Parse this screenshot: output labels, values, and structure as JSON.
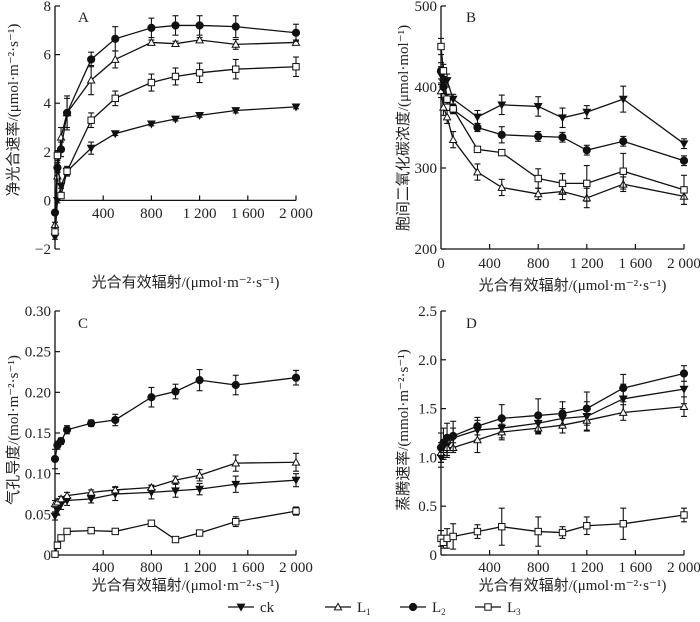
{
  "figure": {
    "legend": [
      {
        "key": "ck",
        "label": "ck",
        "sub": "",
        "marker": "triangle-down-filled"
      },
      {
        "key": "L1",
        "label": "L",
        "sub": "1",
        "marker": "triangle-up-open"
      },
      {
        "key": "L2",
        "label": "L",
        "sub": "2",
        "marker": "circle-filled"
      },
      {
        "key": "L3",
        "label": "L",
        "sub": "3",
        "marker": "square-open"
      }
    ],
    "legend_placement": "bottom-center"
  },
  "chart_data": [
    {
      "id": "A",
      "type": "line",
      "panel_label": "A",
      "xlabel": "光合有效辐射/(μmol·m⁻²·s⁻¹)",
      "ylabel": "净光合速率/(μmol·m⁻²·s⁻¹)",
      "xlim": [
        0,
        2000
      ],
      "ylim": [
        -2,
        8
      ],
      "xticks": [
        400,
        800,
        1200,
        1600,
        2000
      ],
      "xtick_labels": [
        "400",
        "800",
        "1 200",
        "1 600",
        "2 000"
      ],
      "yticks": [
        -2,
        0,
        2,
        4,
        6,
        8
      ],
      "ytick_labels": [
        "−2",
        "0",
        "2",
        "4",
        "6",
        "8"
      ],
      "x": [
        0,
        20,
        50,
        100,
        300,
        500,
        800,
        1000,
        1200,
        1500,
        2000
      ],
      "series": [
        {
          "name": "ck",
          "values": [
            -1.5,
            0.0,
            0.6,
            1.2,
            2.15,
            2.75,
            3.15,
            3.35,
            3.5,
            3.7,
            3.85
          ],
          "errors": [
            0.1,
            0.1,
            0.1,
            0.15,
            0.25,
            0.08,
            0.08,
            0.08,
            0.08,
            0.1,
            0.08
          ]
        },
        {
          "name": "L1",
          "values": [
            -1.0,
            1.0,
            2.6,
            3.6,
            4.95,
            5.8,
            6.5,
            6.45,
            6.6,
            6.42,
            6.5
          ],
          "errors": [
            0.1,
            0.2,
            0.4,
            0.6,
            0.6,
            0.35,
            0.1,
            0.1,
            0.1,
            0.2,
            0.1
          ]
        },
        {
          "name": "L2",
          "values": [
            -0.5,
            1.35,
            2.1,
            3.6,
            5.8,
            6.65,
            7.1,
            7.2,
            7.2,
            7.15,
            6.9
          ],
          "errors": [
            0.1,
            0.2,
            0.3,
            0.7,
            0.3,
            0.5,
            0.4,
            0.4,
            0.4,
            0.45,
            0.35
          ]
        },
        {
          "name": "L3",
          "values": [
            -1.3,
            1.85,
            0.2,
            1.2,
            3.3,
            4.2,
            4.85,
            5.1,
            5.25,
            5.4,
            5.5
          ],
          "errors": [
            0.1,
            0.2,
            0.1,
            0.2,
            0.3,
            0.3,
            0.35,
            0.35,
            0.4,
            0.4,
            0.4
          ]
        }
      ]
    },
    {
      "id": "B",
      "type": "line",
      "panel_label": "B",
      "xlabel": "光合有效辐射/(μmol·m⁻²·s⁻¹)",
      "ylabel": "胞间二氧化碳浓度/(μmol·mol⁻¹)",
      "xlim": [
        0,
        2000
      ],
      "ylim": [
        200,
        500
      ],
      "xticks": [
        0,
        400,
        800,
        1200,
        1600,
        2000
      ],
      "xtick_labels": [
        "0",
        "400",
        "800",
        "1 200",
        "1 600",
        "2 000"
      ],
      "yticks": [
        200,
        300,
        400,
        500
      ],
      "ytick_labels": [
        "200",
        "300",
        "400",
        "500"
      ],
      "x": [
        0,
        20,
        50,
        100,
        300,
        500,
        800,
        1000,
        1200,
        1500,
        2000
      ],
      "series": [
        {
          "name": "ck",
          "values": [
            415,
            405,
            408,
            385,
            363,
            378,
            376,
            362,
            369,
            385,
            330
          ],
          "errors": [
            10,
            8,
            8,
            6,
            8,
            12,
            12,
            12,
            8,
            16,
            6
          ]
        },
        {
          "name": "L1",
          "values": [
            395,
            375,
            363,
            335,
            295,
            276,
            268,
            271,
            263,
            280,
            265
          ],
          "errors": [
            8,
            10,
            8,
            10,
            10,
            10,
            7,
            10,
            12,
            9,
            10
          ]
        },
        {
          "name": "L2",
          "values": [
            420,
            400,
            385,
            372,
            350,
            341,
            339,
            338,
            322,
            333,
            309
          ],
          "errors": [
            10,
            8,
            6,
            5,
            5,
            10,
            6,
            6,
            6,
            6,
            6
          ]
        },
        {
          "name": "L3",
          "values": [
            450,
            420,
            385,
            373,
            323,
            319,
            287,
            281,
            281,
            296,
            273
          ],
          "errors": [
            10,
            8,
            6,
            5,
            3,
            3,
            12,
            12,
            22,
            22,
            18
          ]
        }
      ]
    },
    {
      "id": "C",
      "type": "line",
      "panel_label": "C",
      "xlabel": "光合有效辐射/(μmol·m⁻²·s⁻¹)",
      "ylabel": "气孔导度/(mol·m⁻²·s⁻¹)",
      "xlim": [
        0,
        2000
      ],
      "ylim": [
        0,
        0.3
      ],
      "xticks": [
        400,
        800,
        1200,
        1600,
        2000
      ],
      "xtick_labels": [
        "400",
        "800",
        "1 200",
        "1 600",
        "2 000"
      ],
      "yticks": [
        0,
        0.05,
        0.1,
        0.15,
        0.2,
        0.25,
        0.3
      ],
      "ytick_labels": [
        "0",
        "0.05",
        "0.10",
        "0.15",
        "0.20",
        "0.25",
        "0.30"
      ],
      "x": [
        0,
        20,
        50,
        100,
        300,
        500,
        800,
        1000,
        1200,
        1500,
        2000
      ],
      "series": [
        {
          "name": "ck",
          "values": [
            0.048,
            0.055,
            0.062,
            0.067,
            0.069,
            0.075,
            0.077,
            0.079,
            0.081,
            0.087,
            0.092
          ],
          "errors": [
            0.005,
            0.006,
            0.006,
            0.006,
            0.005,
            0.008,
            0.008,
            0.008,
            0.007,
            0.01,
            0.008
          ]
        },
        {
          "name": "L1",
          "values": [
            0.063,
            0.065,
            0.069,
            0.073,
            0.077,
            0.08,
            0.083,
            0.092,
            0.098,
            0.113,
            0.114
          ],
          "errors": [
            0.004,
            0.004,
            0.003,
            0.004,
            0.003,
            0.004,
            0.003,
            0.005,
            0.007,
            0.01,
            0.011
          ]
        },
        {
          "name": "L2",
          "values": [
            0.118,
            0.135,
            0.14,
            0.154,
            0.162,
            0.166,
            0.194,
            0.201,
            0.215,
            0.209,
            0.218
          ],
          "errors": [
            0.012,
            0.005,
            0.004,
            0.005,
            0.004,
            0.007,
            0.012,
            0.009,
            0.013,
            0.012,
            0.009
          ]
        },
        {
          "name": "L3",
          "values": [
            0.001,
            0.012,
            0.021,
            0.029,
            0.03,
            0.029,
            0.039,
            0.019,
            0.027,
            0.041,
            0.054
          ],
          "errors": [
            0.001,
            0.002,
            0.002,
            0.003,
            0.003,
            0.002,
            0.002,
            0.003,
            0.002,
            0.006,
            0.005
          ]
        }
      ]
    },
    {
      "id": "D",
      "type": "line",
      "panel_label": "D",
      "xlabel": "光合有效辐射/(μmol·m⁻²·s⁻¹)",
      "ylabel": "蒸腾速率/(mmol·m⁻²·s⁻¹)",
      "xlim": [
        0,
        2000
      ],
      "ylim": [
        0,
        2.5
      ],
      "xticks": [
        400,
        800,
        1200,
        1600,
        2000
      ],
      "xtick_labels": [
        "400",
        "800",
        "1 200",
        "1 600",
        "2 000"
      ],
      "yticks": [
        0,
        0.5,
        1.0,
        1.5,
        2.0,
        2.5
      ],
      "ytick_labels": [
        "0",
        "0.5",
        "1.0",
        "1.5",
        "2.0",
        "2.5"
      ],
      "x": [
        0,
        20,
        50,
        100,
        300,
        500,
        800,
        1000,
        1200,
        1500,
        2000
      ],
      "series": [
        {
          "name": "ck",
          "values": [
            1.0,
            1.08,
            1.12,
            1.2,
            1.28,
            1.3,
            1.35,
            1.4,
            1.42,
            1.6,
            1.7
          ],
          "errors": [
            0.1,
            0.1,
            0.1,
            0.1,
            0.1,
            0.1,
            0.1,
            0.1,
            0.15,
            0.15,
            0.15
          ]
        },
        {
          "name": "L1",
          "values": [
            1.05,
            1.08,
            1.1,
            1.1,
            1.18,
            1.26,
            1.3,
            1.33,
            1.38,
            1.46,
            1.52
          ],
          "errors": [
            0.1,
            0.1,
            0.1,
            0.05,
            0.13,
            0.08,
            0.06,
            0.08,
            0.1,
            0.08,
            0.1
          ]
        },
        {
          "name": "L2",
          "values": [
            1.1,
            1.15,
            1.2,
            1.22,
            1.32,
            1.4,
            1.43,
            1.45,
            1.5,
            1.71,
            1.86
          ],
          "errors": [
            0.15,
            0.15,
            0.15,
            0.15,
            0.09,
            0.14,
            0.17,
            0.12,
            0.17,
            0.14,
            0.08
          ]
        },
        {
          "name": "L3",
          "values": [
            0.17,
            0.13,
            0.17,
            0.19,
            0.24,
            0.29,
            0.24,
            0.23,
            0.3,
            0.32,
            0.41
          ],
          "errors": [
            0.08,
            0.06,
            0.1,
            0.13,
            0.07,
            0.19,
            0.15,
            0.06,
            0.09,
            0.16,
            0.07
          ]
        }
      ]
    }
  ]
}
